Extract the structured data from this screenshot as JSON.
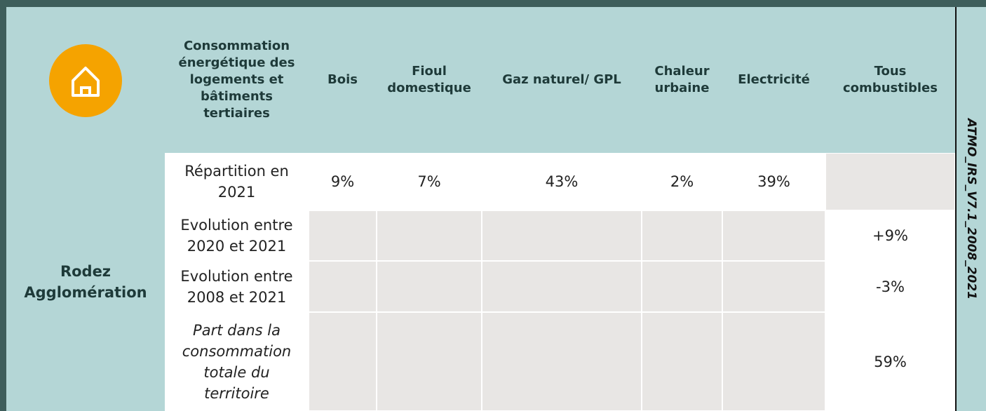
{
  "table": {
    "columns": [
      "Consommation énergétique des logements et bâtiments tertiaires",
      "Bois",
      "Fioul domestique",
      "Gaz naturel/ GPL",
      "Chaleur urbaine",
      "Electricité",
      "Tous combustibles"
    ],
    "territory": "Rodez Agglomération",
    "rows": [
      {
        "label": "Répartition en 2021",
        "cells": [
          "9%",
          "7%",
          "43%",
          "2%",
          "39%"
        ]
      },
      {
        "label": "Evolution entre 2020 et 2021",
        "total": "+9%"
      },
      {
        "label": "Evolution entre 2008 et 2021",
        "total": "-3%"
      },
      {
        "label": "Part dans la consommation totale du territoire",
        "total": "59%"
      }
    ],
    "side_label": "ATMO_IRS_V7.1_2008_2021"
  }
}
